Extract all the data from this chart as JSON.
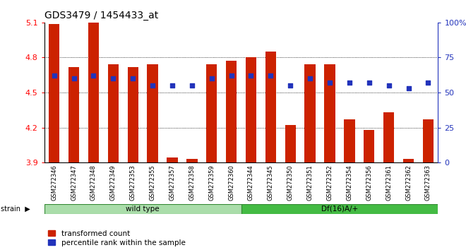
{
  "title": "GDS3479 / 1454433_at",
  "categories": [
    "GSM272346",
    "GSM272347",
    "GSM272348",
    "GSM272349",
    "GSM272353",
    "GSM272355",
    "GSM272357",
    "GSM272358",
    "GSM272359",
    "GSM272360",
    "GSM272344",
    "GSM272345",
    "GSM272350",
    "GSM272351",
    "GSM272352",
    "GSM272354",
    "GSM272356",
    "GSM272361",
    "GSM272362",
    "GSM272363"
  ],
  "bar_values": [
    5.09,
    4.72,
    5.1,
    4.74,
    4.72,
    4.74,
    3.94,
    3.93,
    4.74,
    4.77,
    4.8,
    4.85,
    4.22,
    4.74,
    4.74,
    4.27,
    4.18,
    4.33,
    3.93,
    4.27
  ],
  "percentile_values": [
    62,
    60,
    62,
    60,
    60,
    55,
    55,
    55,
    60,
    62,
    62,
    62,
    55,
    60,
    57,
    57,
    57,
    55,
    53,
    57
  ],
  "ymin": 3.9,
  "ymax": 5.1,
  "bar_color": "#cc2200",
  "percentile_color": "#2233bb",
  "bg_color": "#ffffff",
  "group1_color": "#aaddaa",
  "group2_color": "#44bb44",
  "group1_label": "wild type",
  "group2_label": "Df(16)A/+",
  "group1_count": 10,
  "group2_count": 10,
  "yticks": [
    3.9,
    4.2,
    4.5,
    4.8,
    5.1
  ],
  "y2ticks": [
    0,
    25,
    50,
    75,
    100
  ],
  "legend_tc": "transformed count",
  "legend_pr": "percentile rank within the sample"
}
